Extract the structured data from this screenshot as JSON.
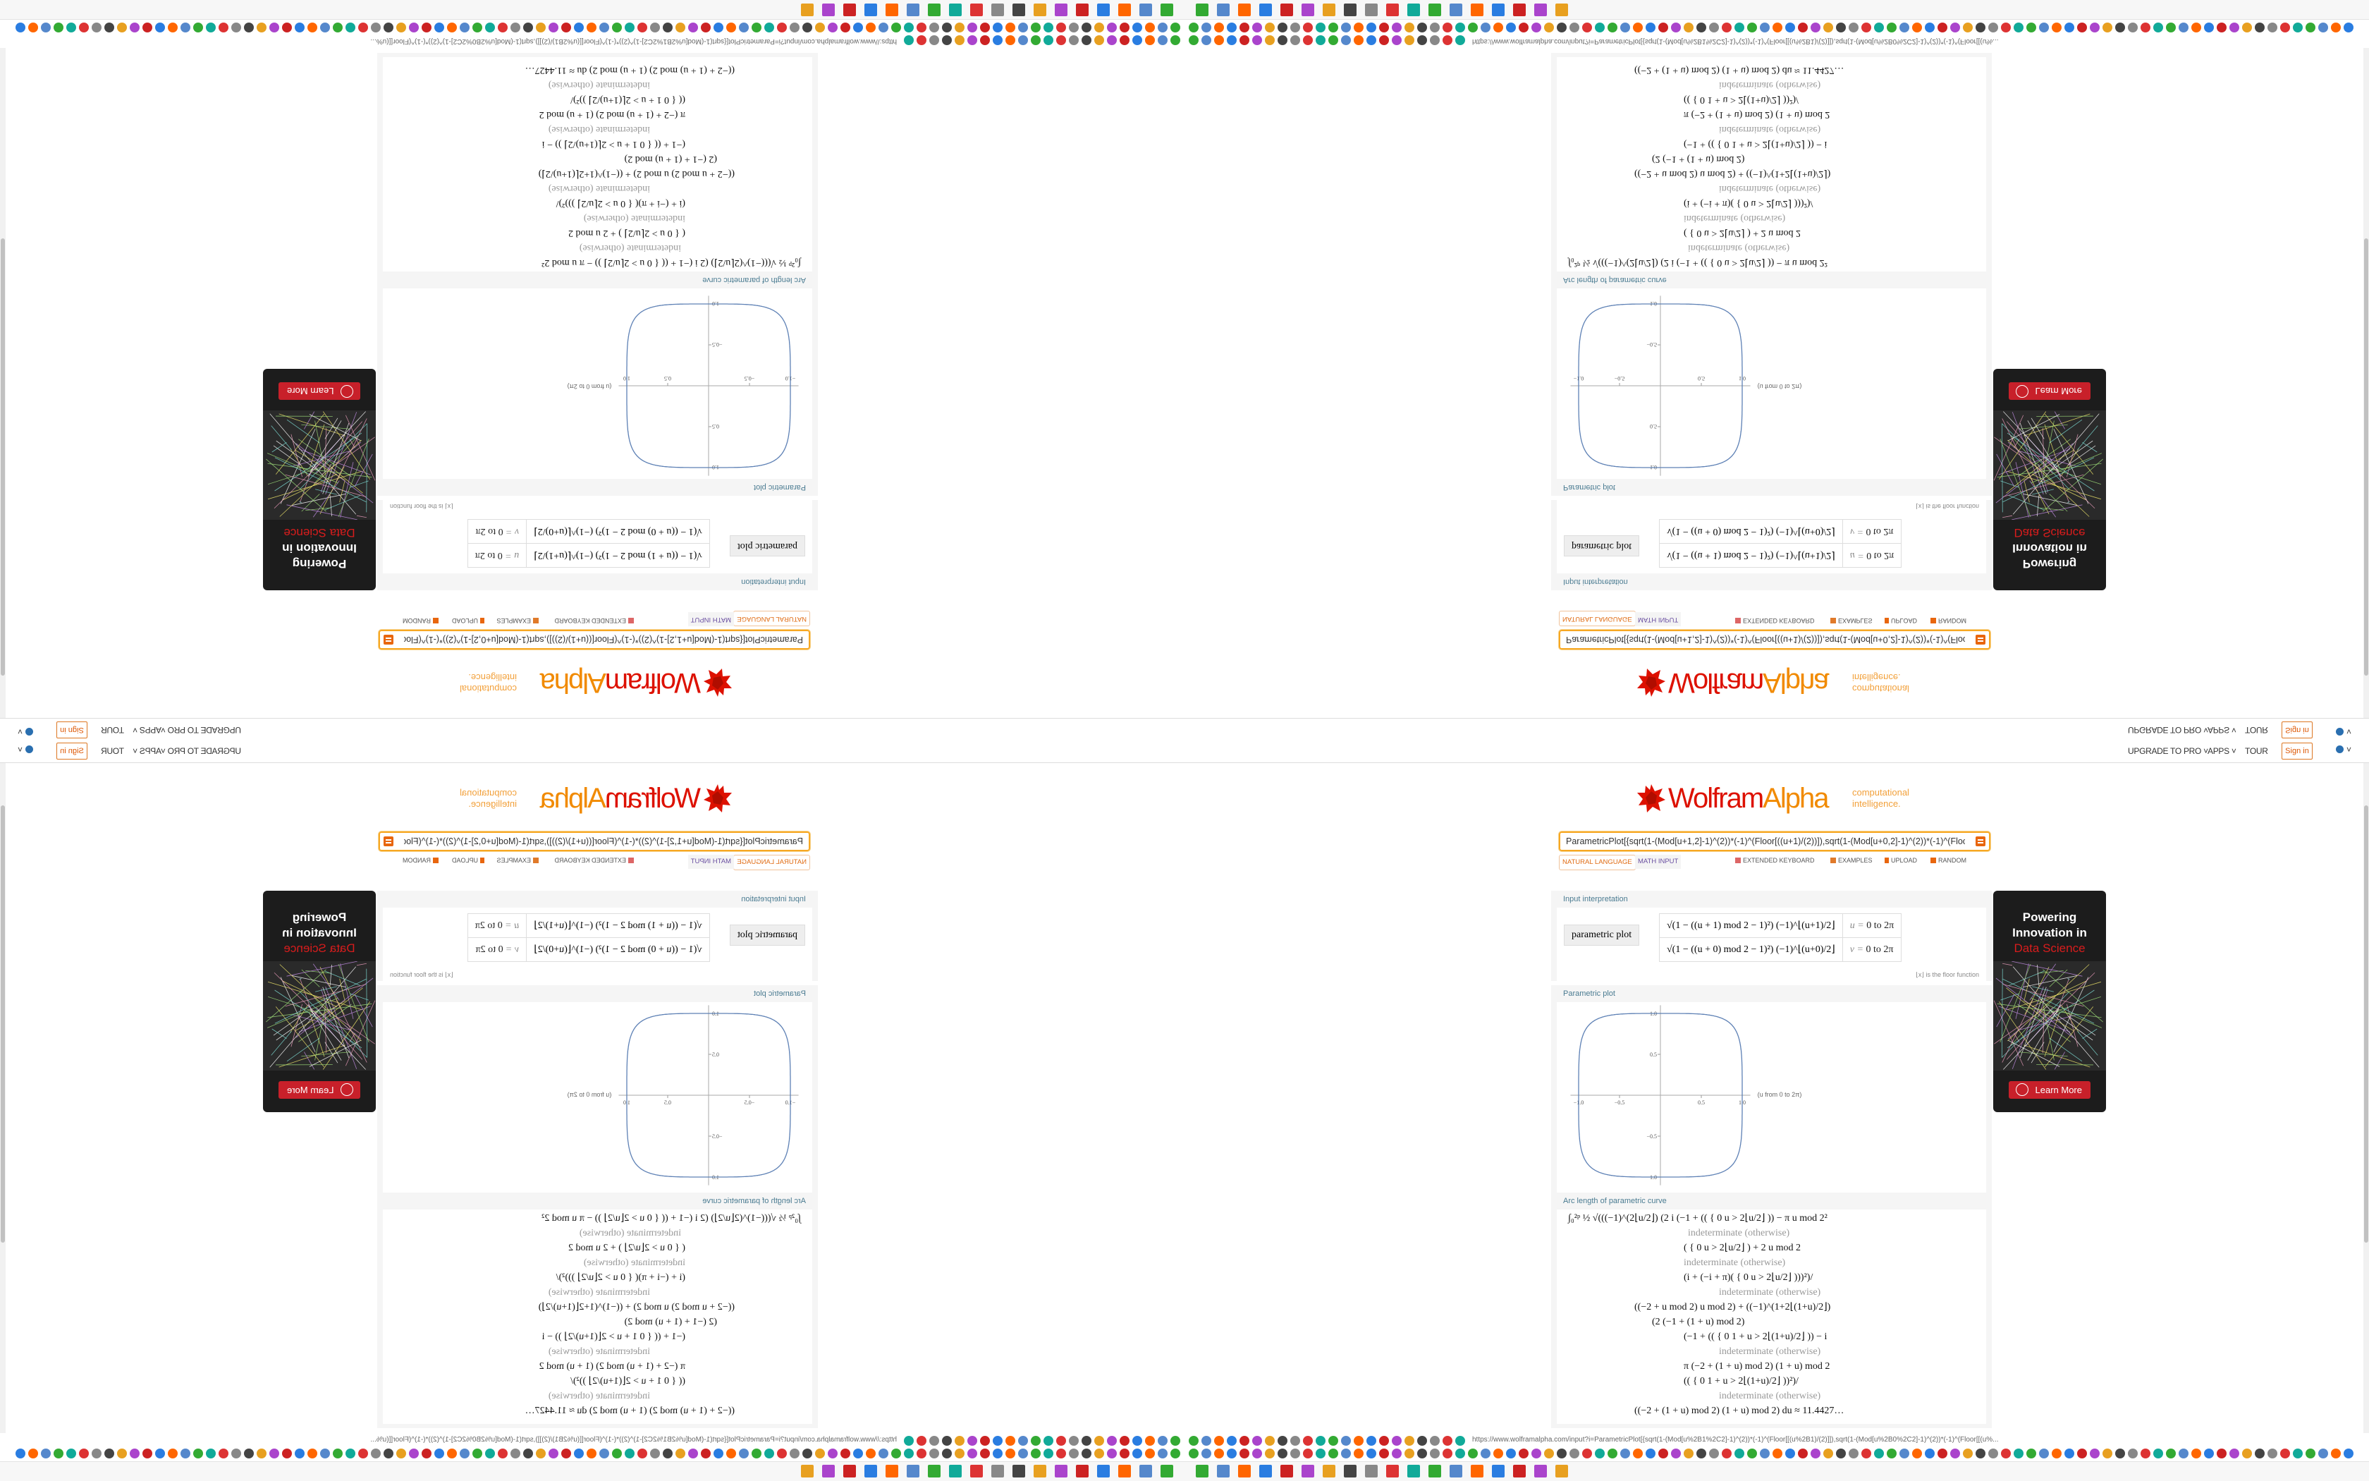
{
  "browser": {
    "url": "https://www.wolframalpha.com/input?i=ParametricPlot[{sqrt(1-(Mod[u%2B1%2C2]-1)^(2))*(-1)^(Floor[[(u%2B1)/(2)]]),sqrt(1-(Mod[u%2B0%2C2]-1)^(2))*(-1)^(Floor[[(u%..."
  },
  "nav": {
    "upgrade": "UPGRADE TO PRO ˅",
    "apps": "APPS ˅",
    "tour": "TOUR",
    "sign_in": "Sign in",
    "language_caret": "˅"
  },
  "logo": {
    "wolfram": "Wolfram",
    "alpha": "Alpha",
    "tagline_1": "computational",
    "tagline_2": "intelligence."
  },
  "search": {
    "value": "ParametricPlot[{sqrt(1-(Mod[u+1,2]-1)^(2))*(-1)^(Floor[((u+1)/(2))]),sqrt(1-(Mod[u+0,2]-1)^(2))*(-1)^(Floor"
  },
  "modes": {
    "natural_language": "NATURAL LANGUAGE",
    "math_input": "MATH INPUT",
    "extended_keyboard": "EXTENDED KEYBOARD",
    "examples": "EXAMPLES",
    "upload": "UPLOAD",
    "random": "RANDOM"
  },
  "pods": {
    "input_interpretation": {
      "title": "Input interpretation",
      "label": "parametric plot",
      "x_expr": "√(1 − ((u + 1) mod 2 − 1)²) (−1)^⌊(u+1)/2⌋",
      "y_expr": "√(1 − ((u + 0) mod 2 − 1)²) (−1)^⌊(u+0)/2⌋",
      "u_range_var": "u = ",
      "u_range": "0 to 2π",
      "v_range_var": "v = ",
      "v_range": "0 to 2π",
      "note": "⌊x⌋ is the floor function"
    },
    "parametric_plot": {
      "title": "Parametric plot"
    },
    "arc_length": {
      "title": "Arc length of parametric curve",
      "lines": [
        "∫₀²ᵖ ½ √(((−1)^(2⌊u/2⌋) (2 i (−1 + (( { 0   u > 2⌊u/2⌋ )) − π u mod 2²",
        "indeterminate   (otherwise)",
        "( { 0   u > 2⌊u/2⌋ ) + 2 u mod 2",
        "indeterminate   (otherwise)",
        "(i + (−i + π)( { 0   u > 2⌊u/2⌋ )))²)/",
        "indeterminate   (otherwise)",
        "((−2 + u mod 2) u mod 2) + ((−1)^(1+2⌊(1+u)/2⌋)",
        "(2 (−1 + (1 + u) mod 2)",
        "(−1 + (( { 0   1 + u > 2⌊(1+u)/2⌋ )) − i",
        "indeterminate   (otherwise)",
        "π (−2 + (1 + u) mod 2) (1 + u) mod 2",
        "(( { 0   1 + u > 2⌊(1+u)/2⌋ ))²)/",
        "indeterminate   (otherwise)",
        "((−2 + (1 + u) mod 2) (1 + u) mod 2) du ≈ 11.4427…"
      ]
    }
  },
  "ad": {
    "line1": "Powering",
    "line2": "Innovation in",
    "line3": "Data Science",
    "button": "Learn More"
  },
  "chart_data": {
    "type": "line",
    "title": "",
    "x_expr": "sqrt(1-(Mod[u+1,2]-1)^2)*(-1)^Floor[(u+1)/2]",
    "y_expr": "sqrt(1-(Mod[u,2]-1)^2)*(-1)^Floor[u/2]",
    "parameter": "u",
    "parameter_range": [
      0,
      6.283185
    ],
    "xlim": [
      -1.1,
      1.1
    ],
    "ylim": [
      -1.1,
      1.1
    ],
    "x_ticks": [
      "-1.0",
      "-0.5",
      "0.5",
      "1.0"
    ],
    "y_ticks": [
      "1.0",
      "0.5",
      "-0.5",
      "-1.0"
    ],
    "legend": "(u from 0 to 2π)",
    "color": "#5e81b5",
    "grid": false
  },
  "colors": {
    "brand_red": "#dd1100",
    "brand_orange": "#f18a00",
    "pod_title": "#4a7b91"
  }
}
